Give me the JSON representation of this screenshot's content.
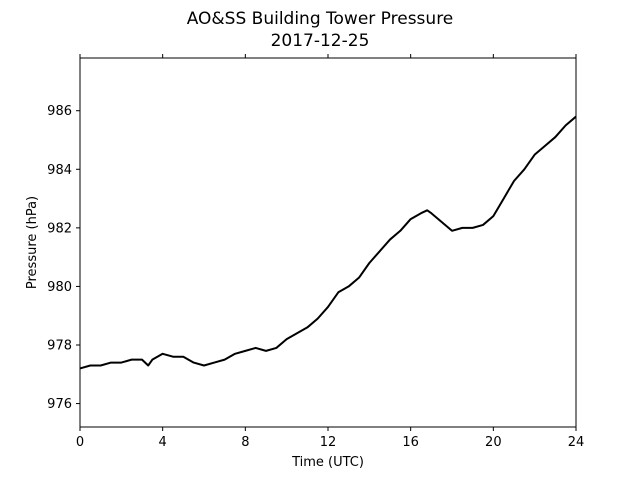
{
  "chart_data": {
    "type": "line",
    "title": "AO&SS Building Tower Pressure",
    "subtitle": "2017-12-25",
    "xlabel": "Time (UTC)",
    "ylabel": "Pressure (hPa)",
    "xlim": [
      0,
      24
    ],
    "ylim": [
      975.2,
      987.8
    ],
    "xticks": [
      0,
      4,
      8,
      12,
      16,
      20,
      24
    ],
    "yticks": [
      976,
      978,
      980,
      982,
      984,
      986
    ],
    "grid": false,
    "line_color": "#000000",
    "series": [
      {
        "x": [
          0,
          0.5,
          1,
          1.5,
          2,
          2.5,
          3,
          3.3,
          3.5,
          4,
          4.5,
          5,
          5.5,
          6,
          6.5,
          7,
          7.5,
          8,
          8.5,
          9,
          9.5,
          10,
          10.5,
          11,
          11.5,
          12,
          12.5,
          13,
          13.5,
          14,
          14.5,
          15,
          15.5,
          16,
          16.5,
          16.8,
          17,
          17.5,
          18,
          18.5,
          19,
          19.5,
          20,
          20.5,
          21,
          21.5,
          22,
          22.5,
          23,
          23.5,
          24
        ],
        "y": [
          977.2,
          977.3,
          977.3,
          977.4,
          977.4,
          977.5,
          977.5,
          977.3,
          977.5,
          977.7,
          977.6,
          977.6,
          977.4,
          977.3,
          977.4,
          977.5,
          977.7,
          977.8,
          977.9,
          977.8,
          977.9,
          978.2,
          978.4,
          978.6,
          978.9,
          979.3,
          979.8,
          980.0,
          980.3,
          980.8,
          981.2,
          981.6,
          981.9,
          982.3,
          982.5,
          982.6,
          982.5,
          982.2,
          981.9,
          982.0,
          982.0,
          982.1,
          982.4,
          983.0,
          983.6,
          984.0,
          984.5,
          984.8,
          985.1,
          985.5,
          985.8
        ]
      }
    ]
  }
}
